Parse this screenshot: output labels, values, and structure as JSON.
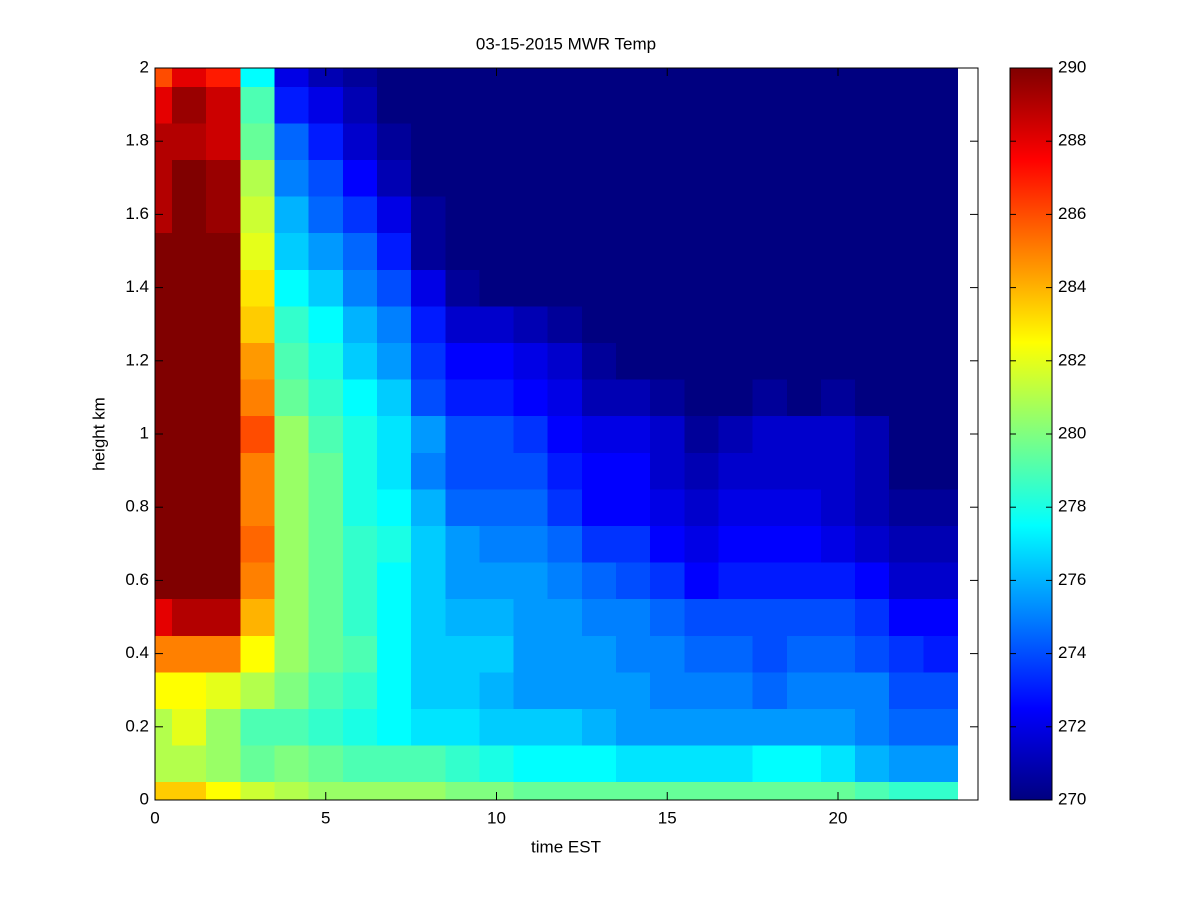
{
  "chart_data": {
    "type": "heatmap",
    "title": "03-15-2015 MWR Temp",
    "xlabel": "time EST",
    "ylabel": "height km",
    "colormap": "jet",
    "clim": [
      270,
      290
    ],
    "xlim": [
      0,
      24.1
    ],
    "ylim": [
      0,
      2
    ],
    "xticks": [
      0,
      5,
      10,
      15,
      20
    ],
    "yticks": [
      0,
      0.2,
      0.4,
      0.6,
      0.8,
      1,
      1.2,
      1.4,
      1.6,
      1.8,
      2
    ],
    "colorbar_ticks": [
      270,
      272,
      274,
      276,
      278,
      280,
      282,
      284,
      286,
      288,
      290
    ],
    "x_edges": [
      0,
      0.5,
      1.5,
      2.5,
      3.5,
      4.5,
      5.5,
      6.5,
      7.5,
      8.5,
      9.5,
      10.5,
      11.5,
      12.5,
      13.5,
      14.5,
      15.5,
      16.5,
      17.5,
      18.5,
      19.5,
      20.5,
      21.5,
      22.5,
      23.5
    ],
    "y_edges": [
      0,
      0.05,
      0.15,
      0.25,
      0.35,
      0.45,
      0.55,
      0.65,
      0.75,
      0.85,
      0.95,
      1.05,
      1.15,
      1.25,
      1.35,
      1.45,
      1.55,
      1.65,
      1.75,
      1.85,
      1.95,
      2
    ],
    "z": [
      [
        283.5,
        283.5,
        282.5,
        281.5,
        281,
        280.5,
        280.5,
        280.5,
        280.5,
        280,
        280,
        279.5,
        279.5,
        279.5,
        279.5,
        279.5,
        279.5,
        279.5,
        279.5,
        279.5,
        279.5,
        279,
        278.5,
        278.5
      ],
      [
        281,
        281,
        280.5,
        279.5,
        280,
        279.5,
        279,
        279,
        279,
        278.5,
        278,
        277.5,
        277.5,
        277.5,
        277,
        277,
        277,
        277,
        277.5,
        277.5,
        277,
        276,
        275.5,
        275.5
      ],
      [
        281,
        282,
        280.5,
        279,
        279,
        278.5,
        278,
        277.5,
        277,
        277,
        276.5,
        276.5,
        276.5,
        276,
        275.5,
        275.5,
        275.5,
        275.5,
        275.5,
        275.5,
        275.5,
        275,
        274.5,
        274.5
      ],
      [
        282.5,
        282.5,
        282,
        281,
        280,
        279,
        278.5,
        277.5,
        276.5,
        276.5,
        276,
        275.5,
        275.5,
        275.5,
        275.5,
        275,
        275,
        275,
        274.5,
        275,
        275,
        275,
        274,
        274
      ],
      [
        285,
        285,
        285,
        282.5,
        280.5,
        279.5,
        279,
        277.5,
        276.5,
        276.5,
        276.5,
        275.5,
        275.5,
        275.5,
        275,
        275,
        274.5,
        274.5,
        274,
        274.5,
        274.5,
        274,
        273.5,
        273
      ],
      [
        288,
        289,
        289,
        284,
        280.5,
        279.5,
        278.5,
        277.5,
        276.5,
        276,
        276,
        275.5,
        275.5,
        275,
        275,
        274.5,
        274,
        274,
        274,
        274,
        274,
        273.5,
        272.5,
        272.5
      ],
      [
        290,
        290,
        290,
        285,
        280.5,
        279.5,
        278.5,
        277.5,
        276.5,
        275.5,
        275.5,
        275.5,
        275,
        274.5,
        274,
        273.5,
        272.5,
        273,
        273,
        273,
        273,
        272.5,
        271.5,
        271.5
      ],
      [
        290,
        290,
        290,
        285.5,
        280.5,
        279.5,
        278.5,
        278,
        276.5,
        275.5,
        275,
        275,
        274.5,
        273.5,
        273.5,
        272.5,
        272,
        272.5,
        272.5,
        272.5,
        272,
        271.5,
        271,
        271
      ],
      [
        290,
        290,
        290,
        285,
        280.5,
        279.5,
        278,
        277.5,
        276,
        274.5,
        274.5,
        274.5,
        273.5,
        272.5,
        272.5,
        272,
        271.5,
        272,
        272,
        272,
        271.5,
        271,
        270.5,
        270.5
      ],
      [
        290,
        290,
        290,
        285,
        280.5,
        279.5,
        278,
        277,
        275,
        274,
        274,
        274,
        273,
        272.5,
        272.5,
        271.5,
        271,
        271.5,
        271.5,
        271.5,
        271.5,
        271,
        270,
        270
      ],
      [
        290,
        290,
        290,
        286,
        280.5,
        279,
        278,
        277,
        275.5,
        274,
        274,
        273.5,
        272.5,
        272,
        272,
        271.5,
        270.5,
        271,
        271.5,
        271.5,
        271.5,
        271,
        270,
        270
      ],
      [
        290,
        290,
        290,
        285,
        279.5,
        278.5,
        277.5,
        276.5,
        274,
        273,
        273,
        272.5,
        272,
        271,
        271,
        270.5,
        270,
        270,
        270.5,
        270,
        270.5,
        270,
        270,
        270
      ],
      [
        290,
        290,
        290,
        284.5,
        279,
        278,
        276.5,
        275.5,
        273.5,
        272.5,
        272.5,
        272,
        271.5,
        270.5,
        270,
        270,
        270,
        270,
        270,
        270,
        270,
        270,
        270,
        270
      ],
      [
        290,
        290,
        290,
        283.5,
        278.5,
        277.5,
        276,
        275,
        273,
        271.5,
        271.5,
        271,
        270.5,
        270,
        270,
        270,
        270,
        270,
        270,
        270,
        270,
        270,
        270,
        270
      ],
      [
        290,
        290,
        290,
        283,
        277.5,
        276.5,
        275,
        274,
        272,
        270.5,
        270,
        270,
        270,
        270,
        270,
        270,
        270,
        270,
        270,
        270,
        270,
        270,
        270,
        270
      ],
      [
        290,
        290,
        290,
        282,
        276.5,
        275.5,
        274.5,
        273,
        270.5,
        270,
        270,
        270,
        270,
        270,
        270,
        270,
        270,
        270,
        270,
        270,
        270,
        270,
        270,
        270
      ],
      [
        289,
        290,
        289.5,
        281.5,
        276,
        274.5,
        273.5,
        272,
        270.5,
        270,
        270,
        270,
        270,
        270,
        270,
        270,
        270,
        270,
        270,
        270,
        270,
        270,
        270,
        270
      ],
      [
        289,
        290,
        289.5,
        281,
        275,
        274,
        272.5,
        271,
        270,
        270,
        270,
        270,
        270,
        270,
        270,
        270,
        270,
        270,
        270,
        270,
        270,
        270,
        270,
        270
      ],
      [
        289,
        289,
        288.5,
        279.5,
        274.5,
        273,
        271.5,
        270.5,
        270,
        270,
        270,
        270,
        270,
        270,
        270,
        270,
        270,
        270,
        270,
        270,
        270,
        270,
        270,
        270
      ],
      [
        288,
        289.5,
        288.5,
        279,
        273,
        272,
        271,
        270,
        270,
        270,
        270,
        270,
        270,
        270,
        270,
        270,
        270,
        270,
        270,
        270,
        270,
        270,
        270,
        270
      ],
      [
        286,
        288,
        287,
        277.5,
        272,
        271,
        270.5,
        270,
        270,
        270,
        270,
        270,
        270,
        270,
        270,
        270,
        270,
        270,
        270,
        270,
        270,
        270,
        270,
        270
      ]
    ]
  }
}
